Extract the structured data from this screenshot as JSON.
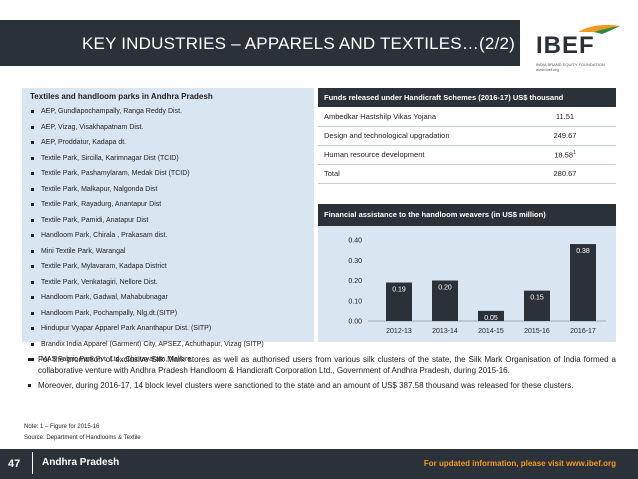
{
  "header": {
    "title": "KEY INDUSTRIES – APPARELS AND TEXTILES…(2/2)",
    "logo_text": "IBEF",
    "logo_tagline": "INDIA BRAND EQUITY FOUNDATION",
    "logo_url": "www.ibef.org"
  },
  "parks": {
    "heading": "Textiles and handloom parks in Andhra Pradesh",
    "items": [
      "AEP, Gundlapochampally, Ranga Reddy Dist.",
      "AEP, Vizag, Visakhapatnam Dist.",
      "AEP, Proddatur, Kadapa dt.",
      "Textile Park, Sircilla, Karimnagar Dist (TCID)",
      "Textile Park, Pashamylaram, Medak Dist (TCID)",
      "Textile Park, Malkapur, Nalgonda Dist",
      "Textile Park, Rayadurg, Anantapur Dist",
      "Textile Park, Pamidi, Anatapur Dist",
      "Handloom Park, Chirala , Prakasam dist.",
      "Mini Textile Park, Warangal",
      "Textile Park, Mylavaram, Kadapa District",
      "Textile Park, Venkatagiri, Nellore Dist.",
      "Handloom Park, Gadwal, Mahabubnagar",
      "Handloom Park, Pochampally, Nlg.dt.(SITP)",
      "Hindupur Vyapar Apparel Park Ananthapur Dist. (SITP)",
      "Brandix India Apparel (Garment) City, APSEZ, Achuthapur, Vizag (SITP)",
      "MAS Fabric Park Pvt. Ltd., Chintavaram, Nellore"
    ]
  },
  "funds": {
    "heading": "Funds released under Handicraft Schemes (2016-17) US$ thousand",
    "rows": [
      {
        "name": "Ambedkar Hastshilp Vikas Yojana",
        "value": "11.51",
        "sup": ""
      },
      {
        "name": "Design and technological upgradation",
        "value": "249.67",
        "sup": ""
      },
      {
        "name": "Human resource development",
        "value": "18.58",
        "sup": "1"
      },
      {
        "name": "Total",
        "value": "280.67",
        "sup": ""
      }
    ]
  },
  "chart_data": {
    "type": "bar",
    "title": "Financial assistance to the handloom weavers (in US$ million)",
    "categories": [
      "2012-13",
      "2013-14",
      "2014-15",
      "2015-16",
      "2016-17"
    ],
    "values": [
      0.19,
      0.2,
      0.05,
      0.15,
      0.38
    ],
    "value_labels": [
      "0.19",
      "0.20",
      "0.05",
      "0.15",
      "0.38"
    ],
    "yticks": [
      "0.00",
      "0.10",
      "0.20",
      "0.30",
      "0.40"
    ],
    "ylim": [
      0,
      0.4
    ],
    "xlabel": "",
    "ylabel": "",
    "grid": false,
    "bar_color": "#2b3138"
  },
  "paragraphs": [
    "For the promotion of exclusive Silk Mark stores as well as authorised users from various silk clusters of the state, the Silk Mark Organisation of India formed a collaborative venture with Andhra Pradesh Handloom & Handicraft Corporation Ltd., Government of Andhra Pradesh, during 2015-16.",
    "Moreover, during 2016-17, 14 block level clusters were sanctioned to the state and an amount of US$ 387.58 thousand was released for these clusters."
  ],
  "note": "Note: 1 – Figure for 2015-16",
  "source": "Source: Department of Handlooms & Textile",
  "footer": {
    "page": "47",
    "state": "Andhra Pradesh",
    "right": "For updated information, please visit www.ibef.org"
  },
  "colors": {
    "dark": "#2b3138",
    "panel": "#d9e5f1",
    "accent": "#f29a1f"
  }
}
